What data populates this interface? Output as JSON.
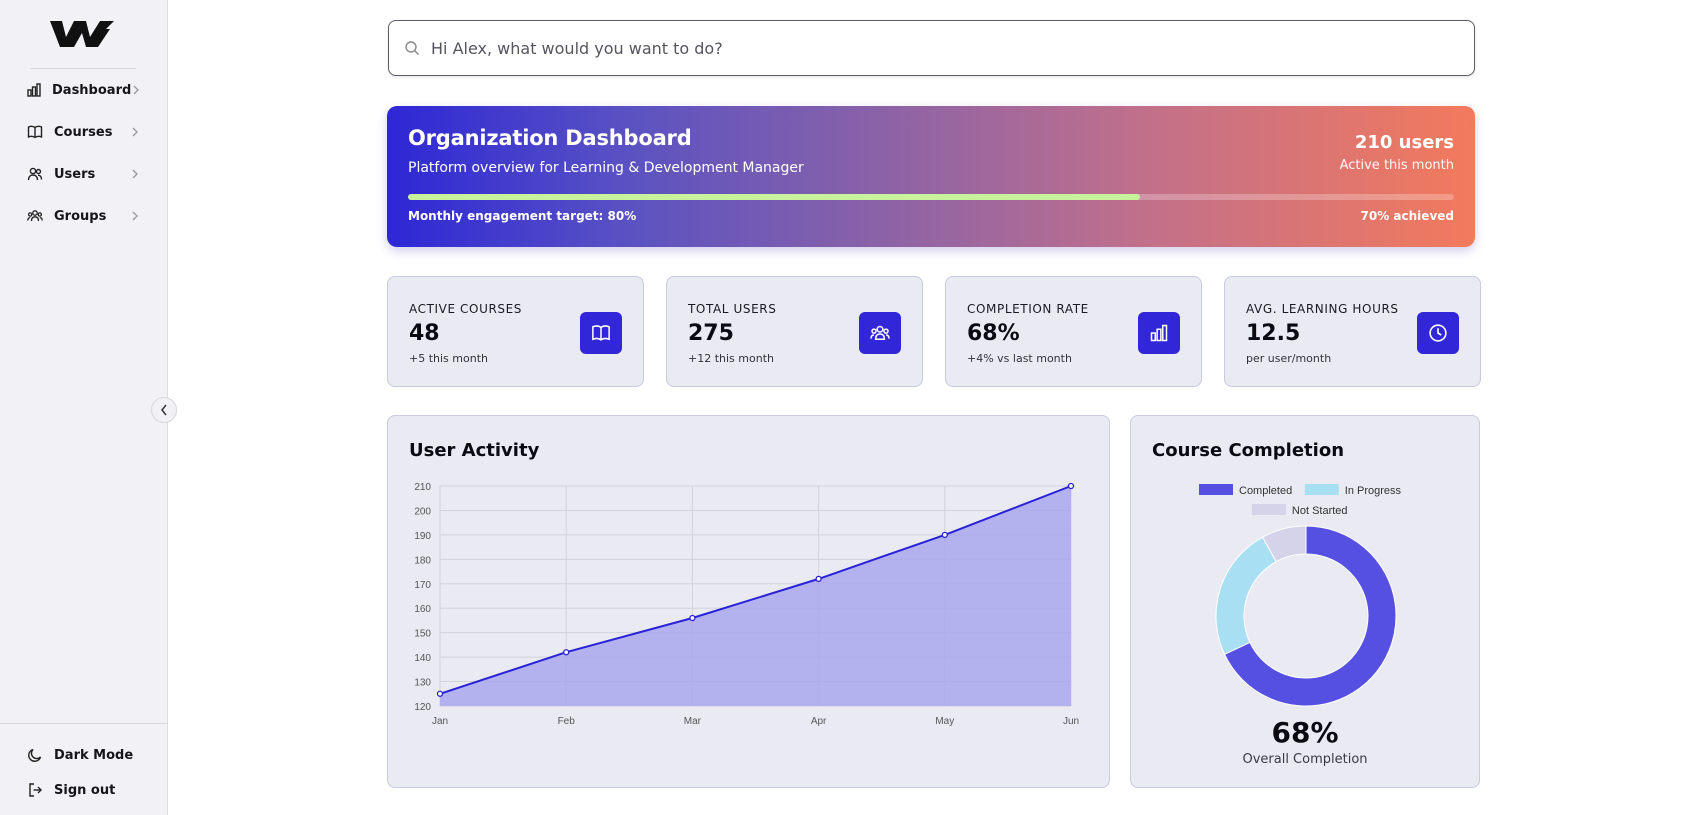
{
  "sidebar": {
    "items": [
      {
        "label": "Dashboard",
        "icon": "bar-chart-icon"
      },
      {
        "label": "Courses",
        "icon": "book-icon"
      },
      {
        "label": "Users",
        "icon": "users-icon"
      },
      {
        "label": "Groups",
        "icon": "groups-icon"
      }
    ],
    "bottom": [
      {
        "label": "Dark Mode",
        "icon": "moon-icon"
      },
      {
        "label": "Sign out",
        "icon": "sign-out-icon"
      }
    ]
  },
  "search": {
    "placeholder": "Hi Alex, what would you want to do?",
    "value": ""
  },
  "banner": {
    "title": "Organization Dashboard",
    "subtitle": "Platform overview for Learning & Development Manager",
    "users": "210 users",
    "users_caption": "Active this month",
    "target_label": "Monthly engagement target: 80%",
    "achieved_label": "70% achieved",
    "progress": 0.7
  },
  "stats": [
    {
      "label": "ACTIVE COURSES",
      "value": "48",
      "delta": "+5 this month",
      "icon": "book-icon"
    },
    {
      "label": "TOTAL USERS",
      "value": "275",
      "delta": "+12 this month",
      "icon": "users-icon"
    },
    {
      "label": "COMPLETION RATE",
      "value": "68%",
      "delta": "+4% vs last month",
      "icon": "bar-chart-icon"
    },
    {
      "label": "AVG. LEARNING HOURS",
      "value": "12.5",
      "delta": "per user/month",
      "icon": "clock-icon"
    }
  ],
  "activity": {
    "title": "User Activity"
  },
  "completion": {
    "title": "Course Completion",
    "value": "68%",
    "caption": "Overall Completion"
  },
  "chart_data": [
    {
      "type": "area",
      "title": "User Activity",
      "categories": [
        "Jan",
        "Feb",
        "Mar",
        "Apr",
        "May",
        "Jun"
      ],
      "values": [
        125,
        142,
        156,
        172,
        190,
        210
      ],
      "ylim": [
        120,
        210
      ],
      "yticks": [
        120,
        130,
        140,
        150,
        160,
        170,
        180,
        190,
        200,
        210
      ],
      "grid": true,
      "line_color": "#2a22d6",
      "fill_color": "#a9a7ec"
    },
    {
      "type": "pie",
      "title": "Course Completion",
      "categories": [
        "Completed",
        "In Progress",
        "Not Started"
      ],
      "values": [
        68,
        24,
        8
      ],
      "colors": [
        "#5650e2",
        "#a9dff2",
        "#d4d3ea"
      ],
      "legend": "top"
    }
  ],
  "colors": {
    "accent": "#3226d9",
    "card_bg": "#eaeaf3",
    "sidebar_bg": "#f2f2f6"
  }
}
